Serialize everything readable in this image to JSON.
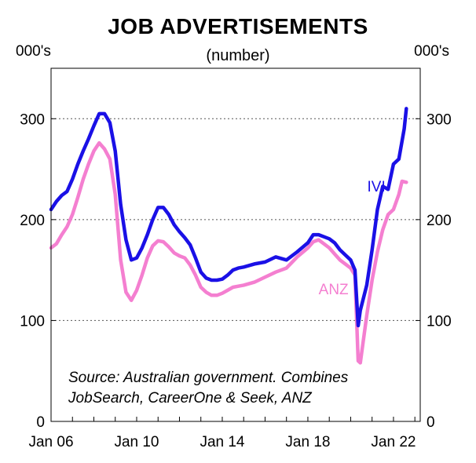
{
  "chart_data": {
    "type": "line",
    "title": "JOB ADVERTISEMENTS",
    "subtitle": "(number)",
    "y_unit_left": "000's",
    "y_unit_right": "000's",
    "xlim": [
      2006.0,
      2023.25
    ],
    "ylim": [
      0,
      350
    ],
    "y_ticks": [
      0,
      100,
      200,
      300
    ],
    "x_ticks": [
      {
        "value": 2006.0,
        "label": "Jan 06"
      },
      {
        "value": 2010.0,
        "label": "Jan 10"
      },
      {
        "value": 2014.0,
        "label": "Jan 14"
      },
      {
        "value": 2018.0,
        "label": "Jan 18"
      },
      {
        "value": 2022.0,
        "label": "Jan 22"
      }
    ],
    "grid": "horizontal dotted",
    "source_note": [
      "Source: Australian government. Combines",
      "JobSearch, CareerOne & Seek, ANZ"
    ],
    "series": [
      {
        "name": "IVI",
        "color": "#1a10e6",
        "points": [
          [
            2006.0,
            210
          ],
          [
            2006.25,
            218
          ],
          [
            2006.5,
            224
          ],
          [
            2006.75,
            228
          ],
          [
            2007.0,
            240
          ],
          [
            2007.25,
            255
          ],
          [
            2007.5,
            268
          ],
          [
            2007.75,
            280
          ],
          [
            2008.0,
            293
          ],
          [
            2008.25,
            305
          ],
          [
            2008.5,
            305
          ],
          [
            2008.75,
            296
          ],
          [
            2009.0,
            268
          ],
          [
            2009.25,
            215
          ],
          [
            2009.5,
            180
          ],
          [
            2009.75,
            160
          ],
          [
            2010.0,
            162
          ],
          [
            2010.25,
            172
          ],
          [
            2010.5,
            185
          ],
          [
            2010.75,
            200
          ],
          [
            2011.0,
            212
          ],
          [
            2011.25,
            212
          ],
          [
            2011.5,
            205
          ],
          [
            2011.75,
            195
          ],
          [
            2012.0,
            188
          ],
          [
            2012.25,
            182
          ],
          [
            2012.5,
            175
          ],
          [
            2012.75,
            162
          ],
          [
            2013.0,
            148
          ],
          [
            2013.25,
            142
          ],
          [
            2013.5,
            140
          ],
          [
            2013.75,
            140
          ],
          [
            2014.0,
            141
          ],
          [
            2014.25,
            145
          ],
          [
            2014.5,
            150
          ],
          [
            2014.75,
            152
          ],
          [
            2015.0,
            153
          ],
          [
            2015.5,
            156
          ],
          [
            2016.0,
            158
          ],
          [
            2016.5,
            163
          ],
          [
            2017.0,
            160
          ],
          [
            2017.5,
            168
          ],
          [
            2018.0,
            177
          ],
          [
            2018.25,
            185
          ],
          [
            2018.5,
            185
          ],
          [
            2018.75,
            183
          ],
          [
            2019.0,
            181
          ],
          [
            2019.25,
            177
          ],
          [
            2019.5,
            170
          ],
          [
            2019.75,
            165
          ],
          [
            2020.0,
            160
          ],
          [
            2020.2,
            150
          ],
          [
            2020.35,
            95
          ],
          [
            2020.45,
            110
          ],
          [
            2020.75,
            135
          ],
          [
            2021.0,
            170
          ],
          [
            2021.25,
            210
          ],
          [
            2021.5,
            233
          ],
          [
            2021.75,
            230
          ],
          [
            2022.0,
            255
          ],
          [
            2022.25,
            260
          ],
          [
            2022.5,
            290
          ],
          [
            2022.6,
            310
          ]
        ]
      },
      {
        "name": "ANZ",
        "color": "#f47fd0",
        "points": [
          [
            2006.0,
            172
          ],
          [
            2006.25,
            176
          ],
          [
            2006.5,
            185
          ],
          [
            2006.75,
            193
          ],
          [
            2007.0,
            205
          ],
          [
            2007.25,
            222
          ],
          [
            2007.5,
            240
          ],
          [
            2007.75,
            255
          ],
          [
            2008.0,
            268
          ],
          [
            2008.25,
            276
          ],
          [
            2008.5,
            270
          ],
          [
            2008.75,
            260
          ],
          [
            2009.0,
            225
          ],
          [
            2009.25,
            160
          ],
          [
            2009.5,
            128
          ],
          [
            2009.75,
            120
          ],
          [
            2010.0,
            130
          ],
          [
            2010.25,
            145
          ],
          [
            2010.5,
            162
          ],
          [
            2010.75,
            174
          ],
          [
            2011.0,
            179
          ],
          [
            2011.25,
            178
          ],
          [
            2011.5,
            173
          ],
          [
            2011.75,
            167
          ],
          [
            2012.0,
            164
          ],
          [
            2012.25,
            162
          ],
          [
            2012.5,
            155
          ],
          [
            2012.75,
            145
          ],
          [
            2013.0,
            133
          ],
          [
            2013.25,
            128
          ],
          [
            2013.5,
            125
          ],
          [
            2013.75,
            125
          ],
          [
            2014.0,
            127
          ],
          [
            2014.25,
            130
          ],
          [
            2014.5,
            133
          ],
          [
            2014.75,
            134
          ],
          [
            2015.0,
            135
          ],
          [
            2015.5,
            138
          ],
          [
            2016.0,
            143
          ],
          [
            2016.5,
            148
          ],
          [
            2017.0,
            152
          ],
          [
            2017.5,
            163
          ],
          [
            2018.0,
            172
          ],
          [
            2018.25,
            178
          ],
          [
            2018.5,
            180
          ],
          [
            2018.75,
            176
          ],
          [
            2019.0,
            172
          ],
          [
            2019.25,
            166
          ],
          [
            2019.5,
            160
          ],
          [
            2019.75,
            156
          ],
          [
            2020.0,
            152
          ],
          [
            2020.2,
            145
          ],
          [
            2020.35,
            60
          ],
          [
            2020.45,
            58
          ],
          [
            2020.75,
            105
          ],
          [
            2021.0,
            140
          ],
          [
            2021.25,
            168
          ],
          [
            2021.5,
            190
          ],
          [
            2021.75,
            205
          ],
          [
            2022.0,
            210
          ],
          [
            2022.25,
            225
          ],
          [
            2022.4,
            238
          ],
          [
            2022.6,
            237
          ]
        ]
      }
    ]
  }
}
